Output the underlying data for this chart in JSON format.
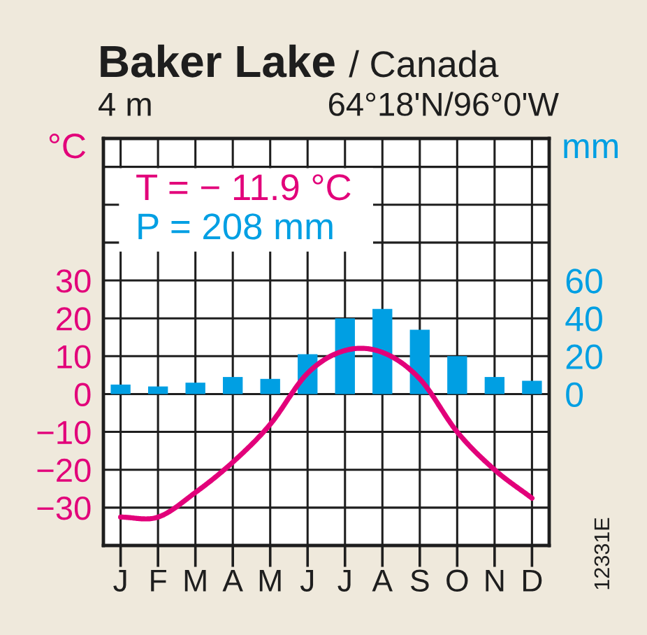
{
  "chart_data": {
    "type": "bar",
    "title": "Baker Lake",
    "subtitle": "/ Canada",
    "categories": [
      "J",
      "F",
      "M",
      "A",
      "M",
      "J",
      "J",
      "A",
      "S",
      "O",
      "N",
      "D"
    ],
    "series": [
      {
        "axis": "y2",
        "color": "#009fe3",
        "values": [
          5,
          4,
          6,
          9,
          8,
          21,
          40,
          45,
          34,
          20,
          9,
          7
        ]
      },
      {
        "type": "line",
        "color": "#e2007a",
        "values": [
          -32.5,
          -32.5,
          -26,
          -18,
          -8,
          5.5,
          11.5,
          11,
          4,
          -10,
          -20,
          -27.5
        ]
      }
    ],
    "ylabel": "°C",
    "y2label": "mm",
    "ylim": [
      -40,
      67.5
    ],
    "yticks": [
      {
        "value": -30,
        "label": "−30"
      },
      {
        "value": -20,
        "label": "−20"
      },
      {
        "value": -10,
        "label": "−10"
      },
      0,
      10,
      20,
      30,
      {
        "value": 40,
        "label": null
      },
      {
        "value": 50,
        "label": null
      },
      {
        "value": 60,
        "label": null
      }
    ],
    "y2lim": [
      -80,
      135
    ],
    "y2ticks": [
      0,
      20,
      40,
      60
    ],
    "grid": true,
    "annotations": [
      "4 m",
      "64°18'N/96°0'W",
      "T = − 11.9 °C",
      "P = 208 mm",
      "12331E"
    ]
  }
}
